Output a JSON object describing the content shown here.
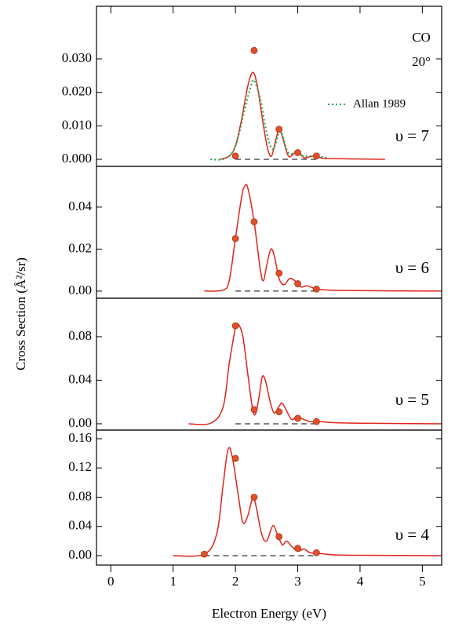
{
  "chart_data": [
    {
      "type": "line",
      "label": "υ = 7",
      "annotations": [
        "CO",
        "20°"
      ],
      "xlim": [
        -0.23,
        5.31
      ],
      "ylim": [
        -0.0021,
        0.0457
      ],
      "yticks": [
        {
          "value": 0,
          "label": "0.000"
        },
        {
          "value": 0.01,
          "label": "0.010"
        },
        {
          "value": 0.02,
          "label": "0.020"
        },
        {
          "value": 0.03,
          "label": "0.030"
        }
      ],
      "series": [
        {
          "color": "#e0241b",
          "style": "solid",
          "x": [
            1.75,
            1.9,
            2.0,
            2.1,
            2.2,
            2.28,
            2.35,
            2.45,
            2.52,
            2.58,
            2.65,
            2.7,
            2.75,
            2.85,
            2.95,
            3.0,
            3.1,
            3.2,
            3.3,
            3.4,
            3.6,
            4.0,
            4.4
          ],
          "values": [
            0,
            0.001,
            0.004,
            0.012,
            0.022,
            0.026,
            0.022,
            0.01,
            0.003,
            0.001,
            0.006,
            0.009,
            0.007,
            0.001,
            0.002,
            0.0025,
            0.0005,
            0.0008,
            0.001,
            0.0003,
            0.0002,
            0.0001,
            0
          ]
        },
        {
          "name": "Allan 1989",
          "color": "#1aa34a",
          "style": "dotted",
          "x": [
            1.6,
            1.8,
            1.95,
            2.05,
            2.15,
            2.25,
            2.3,
            2.4,
            2.5,
            2.6,
            2.7,
            2.75,
            2.85,
            3.0,
            3.1,
            3.3,
            3.5
          ],
          "values": [
            0,
            0,
            0.002,
            0.007,
            0.015,
            0.022,
            0.0235,
            0.018,
            0.008,
            0.003,
            0.008,
            0.0075,
            0.002,
            0.002,
            0.001,
            0.001,
            0.0003
          ]
        }
      ],
      "points": {
        "color": "#e0502a",
        "x": [
          2.0,
          2.3,
          2.7,
          3.0,
          3.3
        ],
        "values": [
          0.001,
          0.0325,
          0.009,
          0.002,
          0.001
        ]
      }
    },
    {
      "type": "line",
      "label": "υ = 6",
      "xlim": [
        -0.23,
        5.31
      ],
      "ylim": [
        -0.0034,
        0.0594
      ],
      "yticks": [
        {
          "value": 0,
          "label": "0.00"
        },
        0.02,
        0.04
      ],
      "series": [
        {
          "color": "#e0241b",
          "style": "solid",
          "x": [
            1.5,
            1.8,
            1.9,
            2.0,
            2.1,
            2.15,
            2.2,
            2.3,
            2.4,
            2.45,
            2.5,
            2.57,
            2.63,
            2.7,
            2.78,
            2.87,
            2.95,
            3.05,
            3.15,
            3.3,
            3.5,
            3.8,
            4.5,
            5.3
          ],
          "values": [
            0,
            0.0005,
            0.005,
            0.025,
            0.045,
            0.05,
            0.049,
            0.033,
            0.01,
            0.005,
            0.012,
            0.02,
            0.016,
            0.006,
            0.003,
            0.006,
            0.005,
            0.002,
            0.0025,
            0.001,
            0.0005,
            0.0003,
            0.0001,
            0
          ]
        }
      ],
      "points": {
        "color": "#e0502a",
        "x": [
          2.0,
          2.3,
          2.7,
          3.0,
          3.3
        ],
        "values": [
          0.025,
          0.033,
          0.0085,
          0.0035,
          0.001
        ]
      }
    },
    {
      "type": "line",
      "label": "υ = 5",
      "xlim": [
        -0.23,
        5.31
      ],
      "ylim": [
        -0.0058,
        0.1153
      ],
      "yticks": [
        {
          "value": 0,
          "label": "0.00"
        },
        0.04,
        0.08
      ],
      "series": [
        {
          "color": "#e0241b",
          "style": "solid",
          "x": [
            1.25,
            1.6,
            1.8,
            1.9,
            2.0,
            2.05,
            2.12,
            2.2,
            2.28,
            2.33,
            2.38,
            2.43,
            2.48,
            2.55,
            2.62,
            2.7,
            2.75,
            2.82,
            2.9,
            2.98,
            3.05,
            3.2,
            3.35,
            3.6,
            4.0,
            5.3
          ],
          "values": [
            0,
            0.0005,
            0.015,
            0.055,
            0.088,
            0.091,
            0.08,
            0.045,
            0.012,
            0.01,
            0.025,
            0.043,
            0.04,
            0.022,
            0.01,
            0.016,
            0.019,
            0.012,
            0.004,
            0.006,
            0.005,
            0.002,
            0.002,
            0.001,
            0.0005,
            0
          ]
        }
      ],
      "points": {
        "color": "#e0502a",
        "x": [
          2.0,
          2.3,
          2.7,
          3.0,
          3.3
        ],
        "values": [
          0.09,
          0.013,
          0.011,
          0.005,
          0.002
        ]
      }
    },
    {
      "type": "line",
      "label": "υ = 4",
      "xlabel": "Electron Energy (eV)",
      "ylabel": "Cross Section (Å²/sr)",
      "xlim": [
        -0.23,
        5.31
      ],
      "ylim": [
        -0.0129,
        0.1718
      ],
      "xticks": [
        0,
        1,
        2,
        3,
        4,
        5
      ],
      "yticks": [
        {
          "value": 0,
          "label": "0.00"
        },
        0.04,
        0.08,
        0.12,
        0.16
      ],
      "series": [
        {
          "color": "#e0241b",
          "style": "solid",
          "x": [
            1.0,
            1.5,
            1.7,
            1.8,
            1.88,
            1.95,
            2.05,
            2.12,
            2.2,
            2.28,
            2.33,
            2.42,
            2.5,
            2.6,
            2.67,
            2.75,
            2.82,
            2.9,
            3.0,
            3.1,
            3.2,
            3.35,
            3.6,
            4.0,
            5.3
          ],
          "values": [
            0,
            0.002,
            0.03,
            0.095,
            0.145,
            0.135,
            0.08,
            0.045,
            0.055,
            0.08,
            0.068,
            0.03,
            0.02,
            0.041,
            0.03,
            0.015,
            0.02,
            0.013,
            0.006,
            0.009,
            0.004,
            0.003,
            0.001,
            0.0005,
            0
          ]
        }
      ],
      "points": {
        "color": "#e0502a",
        "x": [
          1.5,
          2.0,
          2.3,
          2.7,
          3.0,
          3.3
        ],
        "values": [
          0.002,
          0.133,
          0.08,
          0.026,
          0.01,
          0.004
        ]
      }
    }
  ]
}
